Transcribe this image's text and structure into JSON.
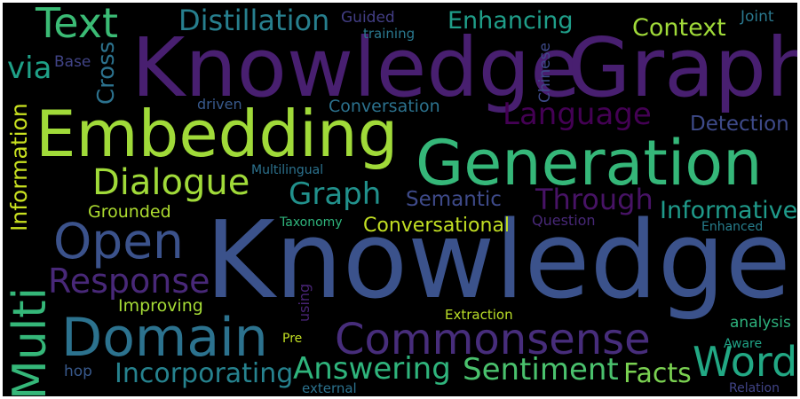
{
  "word_cloud": {
    "background": "#000000",
    "words": [
      {
        "text": "Knowledge",
        "color": "#3b528b"
      },
      {
        "text": "Knowledge",
        "color": "#481f70"
      },
      {
        "text": "Graph",
        "color": "#481f70"
      },
      {
        "text": "Generation",
        "color": "#35b779"
      },
      {
        "text": "Embedding",
        "color": "#a0da39"
      },
      {
        "text": "Domain",
        "color": "#2c728e"
      },
      {
        "text": "Commonsense",
        "color": "#472d7b"
      },
      {
        "text": "Open",
        "color": "#3b528b"
      },
      {
        "text": "Multi",
        "color": "#35b779"
      },
      {
        "text": "Text",
        "color": "#3bbb75"
      },
      {
        "text": "Word",
        "color": "#22a884"
      },
      {
        "text": "Dialogue",
        "color": "#a0da39"
      },
      {
        "text": "Response",
        "color": "#482878"
      },
      {
        "text": "Sentiment",
        "color": "#4ac16d"
      },
      {
        "text": "Answering",
        "color": "#2fb47c"
      },
      {
        "text": "Graph",
        "color": "#21918c"
      },
      {
        "text": "Distillation",
        "color": "#277f8e"
      },
      {
        "text": "Incorporating",
        "color": "#26828e"
      },
      {
        "text": "Language",
        "color": "#440154"
      },
      {
        "text": "Through",
        "color": "#471365"
      },
      {
        "text": "Facts",
        "color": "#7ad151"
      },
      {
        "text": "Enhancing",
        "color": "#1f9e89"
      },
      {
        "text": "Context",
        "color": "#a0da39"
      },
      {
        "text": "Informative",
        "color": "#1f9a8a"
      },
      {
        "text": "Information",
        "color": "#c8e020"
      },
      {
        "text": "Cross",
        "color": "#2c728e"
      },
      {
        "text": "via",
        "color": "#1fa188"
      },
      {
        "text": "Detection",
        "color": "#3e4a89"
      },
      {
        "text": "Semantic",
        "color": "#3e4a89"
      },
      {
        "text": "Conversational",
        "color": "#c2df23"
      },
      {
        "text": "Grounded",
        "color": "#addc30"
      },
      {
        "text": "Improving",
        "color": "#a5db36"
      },
      {
        "text": "Conversation",
        "color": "#2c728e"
      },
      {
        "text": "Chinese",
        "color": "#3e4a89"
      },
      {
        "text": "analysis",
        "color": "#2db27d"
      },
      {
        "text": "Extraction",
        "color": "#bade28"
      },
      {
        "text": "Guided",
        "color": "#433e85"
      },
      {
        "text": "Base",
        "color": "#414487"
      },
      {
        "text": "driven",
        "color": "#38598c"
      },
      {
        "text": "Joint",
        "color": "#2a788e"
      },
      {
        "text": "training",
        "color": "#2a788e"
      },
      {
        "text": "Multilingual",
        "color": "#2c728e"
      },
      {
        "text": "Taxonomy",
        "color": "#2fb47c"
      },
      {
        "text": "Question",
        "color": "#482878"
      },
      {
        "text": "Enhanced",
        "color": "#277f8e"
      },
      {
        "text": "using",
        "color": "#482475"
      },
      {
        "text": "Pre",
        "color": "#c2df23"
      },
      {
        "text": "Aware",
        "color": "#20a386"
      },
      {
        "text": "hop",
        "color": "#38598c"
      },
      {
        "text": "external",
        "color": "#2c728e"
      },
      {
        "text": "Relation",
        "color": "#414487"
      }
    ]
  }
}
